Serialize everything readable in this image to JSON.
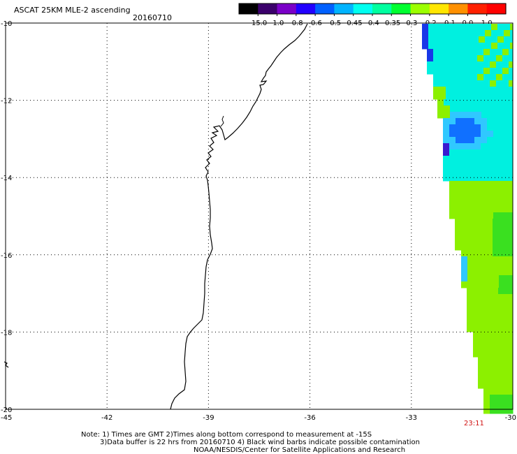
{
  "header": {
    "title": "ASCAT 25KM MLE-2 ascending",
    "date": "20160710"
  },
  "colorbar": {
    "labels": [
      "-15.0",
      "-1.0",
      "-0.8",
      "-0.6",
      "-0.5",
      "-0.45",
      "-0.4",
      "-0.35",
      "-0.3",
      "-0.2",
      "-0.1",
      "0.0",
      "1.0"
    ],
    "colors": [
      "#000000",
      "#3b006b",
      "#7a00c8",
      "#2200ff",
      "#0060ff",
      "#00b4ff",
      "#00fff0",
      "#00ffa0",
      "#00ff30",
      "#9cff00",
      "#ffe600",
      "#ff9000",
      "#ff2000",
      "#ff0000"
    ]
  },
  "map": {
    "y_axis_labels": [
      "-10",
      "-12",
      "-14",
      "-16",
      "-18",
      "-20"
    ],
    "x_axis_labels": [
      "-45",
      "-42",
      "-39",
      "-36",
      "-33",
      "-30"
    ],
    "lat_range": [
      -20,
      -10
    ],
    "lon_range": [
      -45,
      -30
    ],
    "pass_time": "23:11",
    "colors": {
      "green": "#8cf000",
      "green_dark": "#3ae020",
      "cyan": "#00f0e0",
      "light_blue": "#30c8ff",
      "blue": "#1070ff",
      "deep_blue": "#1838e8",
      "violet": "#3a1ad0"
    }
  },
  "footer": {
    "line1": "Note: 1) Times are GMT 2)Times along bottom correspond to measurement at -15S",
    "line2": "3)Data buffer is 22 hrs from 20160710 4) Black wind barbs indicate possible contamination",
    "line3": "NOAA/NESDIS/Center for Satellite Applications and Research"
  }
}
